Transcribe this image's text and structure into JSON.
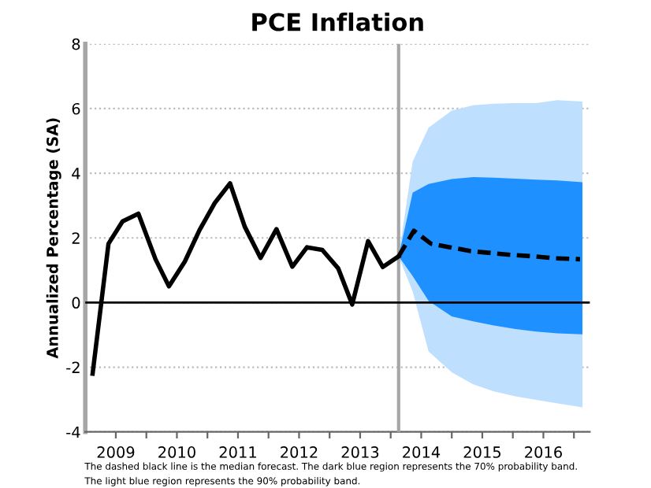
{
  "chart_data": {
    "type": "line",
    "title": "PCE Inflation",
    "ylabel": "Annualized Percentage (SA)",
    "xlim": [
      2009.0,
      2017.26
    ],
    "xticks": [
      {
        "value": 2009.5,
        "label": "2009"
      },
      {
        "value": 2010.5,
        "label": "2010"
      },
      {
        "value": 2011.5,
        "label": "2011"
      },
      {
        "value": 2012.5,
        "label": "2012"
      },
      {
        "value": 2013.5,
        "label": "2013"
      },
      {
        "value": 2014.5,
        "label": "2014"
      },
      {
        "value": 2015.5,
        "label": "2015"
      },
      {
        "value": 2016.5,
        "label": "2016"
      },
      {
        "value": 2010,
        "label": null
      },
      {
        "value": 2011,
        "label": null
      },
      {
        "value": 2012,
        "label": null
      },
      {
        "value": 2013,
        "label": null
      },
      {
        "value": 2014,
        "label": null
      },
      {
        "value": 2015,
        "label": null
      },
      {
        "value": 2016,
        "label": null
      },
      {
        "value": 2017,
        "label": null
      }
    ],
    "ylim": [
      -4,
      8
    ],
    "yticks": [
      -4,
      -2,
      0,
      2,
      4,
      6,
      8
    ],
    "grid": "y",
    "legend": false,
    "series": [
      {
        "color": "#bfdfff",
        "x": [
          2014.13,
          2014.36,
          2014.62,
          2015.0,
          2015.35,
          2015.69,
          2016.04,
          2016.38,
          2016.73,
          2017.14
        ],
        "values": [
          null,
          null,
          null,
          null,
          null,
          null,
          null,
          null,
          null,
          null
        ],
        "lower": [
          1.43,
          0.34,
          -1.51,
          -2.16,
          -2.53,
          -2.75,
          -2.9,
          -3.01,
          -3.12,
          -3.24
        ],
        "upper": [
          1.43,
          4.36,
          5.41,
          5.94,
          6.1,
          6.15,
          6.17,
          6.17,
          6.26,
          6.22
        ]
      },
      {
        "color": "#1e90ff",
        "x": [
          2014.13,
          2014.36,
          2014.62,
          2015.0,
          2015.35,
          2015.69,
          2016.04,
          2016.38,
          2016.73,
          2017.14
        ],
        "values": [
          null,
          null,
          null,
          null,
          null,
          null,
          null,
          null,
          null,
          null
        ],
        "lower": [
          1.43,
          0.82,
          0.05,
          -0.43,
          -0.58,
          -0.71,
          -0.82,
          -0.9,
          -0.95,
          -0.98
        ],
        "upper": [
          1.43,
          3.4,
          3.67,
          3.82,
          3.88,
          3.86,
          3.83,
          3.8,
          3.78,
          3.72
        ]
      },
      {
        "color": "#000000",
        "line_style": "solid",
        "x": [
          2009.12,
          2009.38,
          2009.61,
          2009.87,
          2010.15,
          2010.37,
          2010.63,
          2010.87,
          2011.12,
          2011.37,
          2011.61,
          2011.87,
          2012.13,
          2012.39,
          2012.63,
          2012.88,
          2013.14,
          2013.37,
          2013.63,
          2013.87,
          2014.13
        ],
        "values": [
          -2.2,
          1.82,
          2.51,
          2.75,
          1.34,
          0.5,
          1.27,
          2.24,
          3.08,
          3.69,
          2.35,
          1.38,
          2.27,
          1.11,
          1.71,
          1.63,
          1.06,
          -0.06,
          1.9,
          1.1,
          1.43
        ]
      },
      {
        "color": "#000000",
        "line_style": "dashed",
        "x": [
          2014.13,
          2014.38,
          2014.66,
          2014.97,
          2015.31,
          2015.66,
          2016.0,
          2016.34,
          2016.69,
          2017.1
        ],
        "values": [
          1.43,
          2.22,
          1.82,
          1.71,
          1.59,
          1.53,
          1.47,
          1.43,
          1.37,
          1.34
        ]
      }
    ],
    "ref_lines": [
      {
        "axis": "x",
        "value": 2014.13,
        "color": "#a6a6a6"
      },
      {
        "axis": "y",
        "value": 0,
        "color": "#000000"
      }
    ],
    "annotations": [
      "The dashed black line is the median forecast. The dark blue region represents the 70% probability band.",
      "The light blue region represents the 90% probability band."
    ]
  }
}
